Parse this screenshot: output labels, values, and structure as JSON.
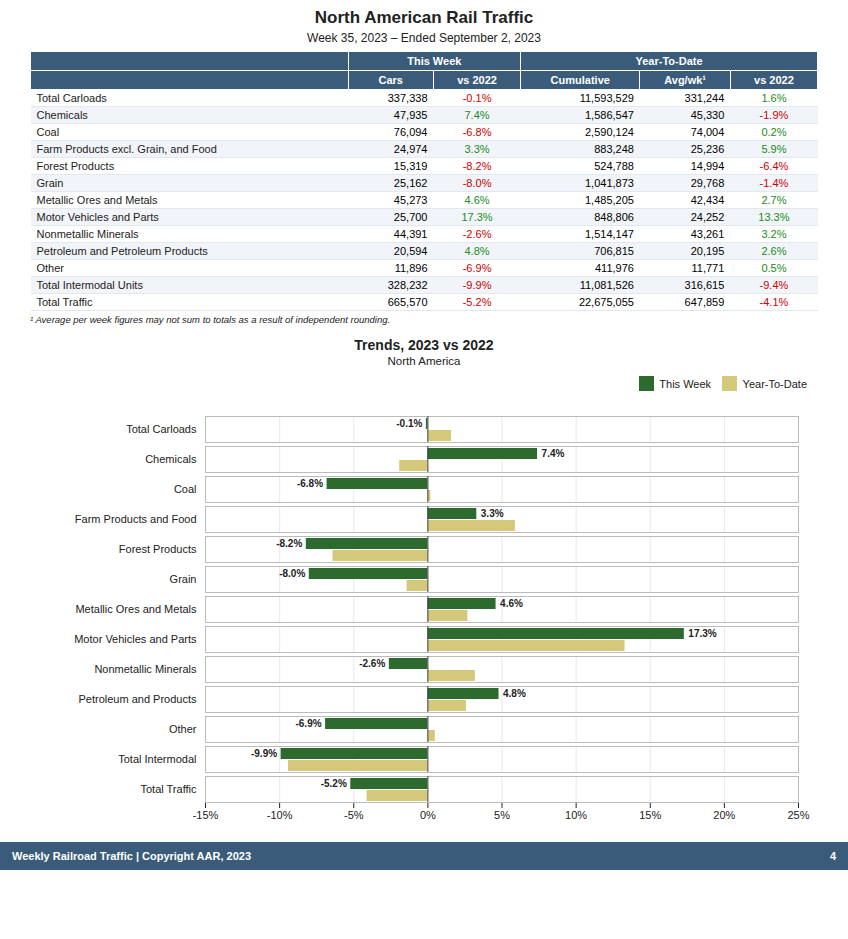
{
  "chart_data": [
    {
      "type": "table",
      "title": "North American Rail Traffic",
      "subtitle": "Week 35, 2023 – Ended September 2, 2023",
      "columns": [
        {
          "group": "This Week",
          "label": "Cars"
        },
        {
          "group": "This Week",
          "label": "vs 2022"
        },
        {
          "group": "Year-To-Date",
          "label": "Cumulative"
        },
        {
          "group": "Year-To-Date",
          "label": "Avg/wk¹"
        },
        {
          "group": "Year-To-Date",
          "label": "vs 2022"
        }
      ],
      "rows": [
        {
          "label": "Total Carloads",
          "values": [
            "337,338",
            "-0.1%",
            "11,593,529",
            "331,244",
            "1.6%"
          ],
          "colors": [
            "black",
            "#cc0000",
            "black",
            "black",
            "#228B22"
          ]
        },
        {
          "label": "Chemicals",
          "values": [
            "47,935",
            "7.4%",
            "1,586,547",
            "45,330",
            "-1.9%"
          ],
          "colors": [
            "black",
            "#228B22",
            "black",
            "black",
            "#cc0000"
          ]
        },
        {
          "label": "Coal",
          "values": [
            "76,094",
            "-6.8%",
            "2,590,124",
            "74,004",
            "0.2%"
          ],
          "colors": [
            "black",
            "#cc0000",
            "black",
            "black",
            "#228B22"
          ]
        },
        {
          "label": "Farm Products excl. Grain, and Food",
          "values": [
            "24,974",
            "3.3%",
            "883,248",
            "25,236",
            "5.9%"
          ],
          "colors": [
            "black",
            "#228B22",
            "black",
            "black",
            "#228B22"
          ]
        },
        {
          "label": "Forest Products",
          "values": [
            "15,319",
            "-8.2%",
            "524,788",
            "14,994",
            "-6.4%"
          ],
          "colors": [
            "black",
            "#cc0000",
            "black",
            "black",
            "#cc0000"
          ]
        },
        {
          "label": "Grain",
          "values": [
            "25,162",
            "-8.0%",
            "1,041,873",
            "29,768",
            "-1.4%"
          ],
          "colors": [
            "black",
            "#cc0000",
            "black",
            "black",
            "#cc0000"
          ]
        },
        {
          "label": "Metallic Ores and Metals",
          "values": [
            "45,273",
            "4.6%",
            "1,485,205",
            "42,434",
            "2.7%"
          ],
          "colors": [
            "black",
            "#228B22",
            "black",
            "black",
            "#228B22"
          ]
        },
        {
          "label": "Motor Vehicles and Parts",
          "values": [
            "25,700",
            "17.3%",
            "848,806",
            "24,252",
            "13.3%"
          ],
          "colors": [
            "black",
            "#228B22",
            "black",
            "black",
            "#228B22"
          ]
        },
        {
          "label": "Nonmetallic Minerals",
          "values": [
            "44,391",
            "-2.6%",
            "1,514,147",
            "43,261",
            "3.2%"
          ],
          "colors": [
            "black",
            "#cc0000",
            "black",
            "black",
            "#228B22"
          ]
        },
        {
          "label": "Petroleum and Petroleum Products",
          "values": [
            "20,594",
            "4.8%",
            "706,815",
            "20,195",
            "2.6%"
          ],
          "colors": [
            "black",
            "#228B22",
            "black",
            "black",
            "#228B22"
          ]
        },
        {
          "label": "Other",
          "values": [
            "11,896",
            "-6.9%",
            "411,976",
            "11,771",
            "0.5%"
          ],
          "colors": [
            "black",
            "#cc0000",
            "black",
            "black",
            "#228B22"
          ]
        },
        {
          "label": "Total Intermodal Units",
          "values": [
            "328,232",
            "-9.9%",
            "11,081,526",
            "316,615",
            "-9.4%"
          ],
          "colors": [
            "black",
            "#cc0000",
            "black",
            "black",
            "#cc0000"
          ]
        },
        {
          "label": "Total Traffic",
          "values": [
            "665,570",
            "-5.2%",
            "22,675,055",
            "647,859",
            "-4.1%"
          ],
          "colors": [
            "black",
            "#cc0000",
            "black",
            "black",
            "#cc0000"
          ]
        }
      ],
      "annotations": [
        "¹ Average per week figures may not sum to totals as a result of independent rounding."
      ]
    },
    {
      "type": "bar",
      "orientation": "horizontal",
      "title": "Trends, 2023 vs 2022",
      "subtitle": "North America",
      "categories": [
        "Total Carloads",
        "Chemicals",
        "Coal",
        "Farm Products and Food",
        "Forest Products",
        "Grain",
        "Metallic Ores and Metals",
        "Motor Vehicles and Parts",
        "Nonmetallic Minerals",
        "Petroleum and Products",
        "Other",
        "Total Intermodal",
        "Total Traffic"
      ],
      "series": [
        {
          "name": "This Week",
          "color": "#2d6a2d",
          "values": [
            -0.1,
            7.4,
            -6.8,
            3.3,
            -8.2,
            -8.0,
            4.6,
            17.3,
            -2.6,
            4.8,
            -6.9,
            -9.9,
            -5.2
          ],
          "value_labels": [
            "-0.1%",
            "7.4%",
            "-6.8%",
            "3.3%",
            "-8.2%",
            "-8.0%",
            "4.6%",
            "17.3%",
            "-2.6%",
            "4.8%",
            "-6.9%",
            "-9.9%",
            "-5.2%"
          ]
        },
        {
          "name": "Year-To-Date",
          "color": "#d4c87a",
          "values": [
            1.6,
            -1.9,
            0.2,
            5.9,
            -6.4,
            -1.4,
            2.7,
            13.3,
            3.2,
            2.6,
            0.5,
            -9.4,
            -4.1
          ]
        }
      ],
      "xlim": [
        -15,
        25
      ],
      "xticks": [
        {
          "value": -15,
          "label": "-15%"
        },
        {
          "value": -10,
          "label": "-10%"
        },
        {
          "value": -5,
          "label": "-5%"
        },
        {
          "value": 0,
          "label": "0%"
        },
        {
          "value": 5,
          "label": "5%"
        },
        {
          "value": 10,
          "label": "10%"
        },
        {
          "value": 15,
          "label": "15%"
        },
        {
          "value": 20,
          "label": "20%"
        },
        {
          "value": 25,
          "label": "25%"
        }
      ],
      "grid": true,
      "legend": "upper right",
      "data_labels": true,
      "annotations": [
        "Weekly Railroad Traffic | Copyright AAR, 2023",
        "4"
      ]
    }
  ]
}
